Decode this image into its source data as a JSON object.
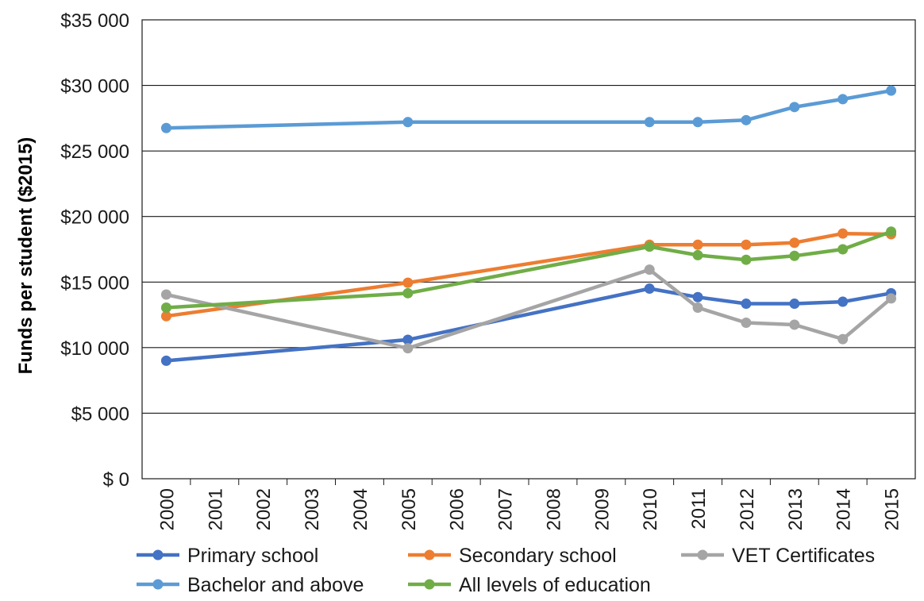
{
  "chart_data": {
    "type": "line",
    "title": "",
    "xlabel": "",
    "ylabel": "Funds per student ($2015)",
    "ylim": [
      0,
      35000
    ],
    "yticks": [
      0,
      5000,
      10000,
      15000,
      20000,
      25000,
      30000,
      35000
    ],
    "ytick_labels": [
      "$ 0",
      "$5 000",
      "$10 000",
      "$15 000",
      "$20 000",
      "$25 000",
      "$30 000",
      "$35 000"
    ],
    "x_categories": [
      "2000",
      "2001",
      "2002",
      "2003",
      "2004",
      "2005",
      "2006",
      "2007",
      "2008",
      "2009",
      "2010",
      "2011",
      "2012",
      "2013",
      "2014",
      "2015"
    ],
    "grid": "horizontal",
    "legend_position": "bottom",
    "series": [
      {
        "name": "Primary school",
        "color": "#4472C4",
        "points": [
          {
            "x": "2000",
            "y": 9000
          },
          {
            "x": "2005",
            "y": 10600
          },
          {
            "x": "2010",
            "y": 14500
          },
          {
            "x": "2011",
            "y": 13850
          },
          {
            "x": "2012",
            "y": 13350
          },
          {
            "x": "2013",
            "y": 13350
          },
          {
            "x": "2014",
            "y": 13500
          },
          {
            "x": "2015",
            "y": 14150
          }
        ]
      },
      {
        "name": "Secondary school",
        "color": "#ED7D31",
        "points": [
          {
            "x": "2000",
            "y": 12400
          },
          {
            "x": "2005",
            "y": 14950
          },
          {
            "x": "2010",
            "y": 17850
          },
          {
            "x": "2011",
            "y": 17850
          },
          {
            "x": "2012",
            "y": 17850
          },
          {
            "x": "2013",
            "y": 18000
          },
          {
            "x": "2014",
            "y": 18700
          },
          {
            "x": "2015",
            "y": 18650
          }
        ]
      },
      {
        "name": "VET Certificates",
        "color": "#A5A5A5",
        "points": [
          {
            "x": "2000",
            "y": 14050
          },
          {
            "x": "2005",
            "y": 9950
          },
          {
            "x": "2010",
            "y": 15950
          },
          {
            "x": "2011",
            "y": 13050
          },
          {
            "x": "2012",
            "y": 11900
          },
          {
            "x": "2013",
            "y": 11750
          },
          {
            "x": "2014",
            "y": 10650
          },
          {
            "x": "2015",
            "y": 13750
          }
        ]
      },
      {
        "name": "Bachelor and above",
        "color": "#5B9BD5",
        "points": [
          {
            "x": "2000",
            "y": 26750
          },
          {
            "x": "2005",
            "y": 27200
          },
          {
            "x": "2010",
            "y": 27200
          },
          {
            "x": "2011",
            "y": 27200
          },
          {
            "x": "2012",
            "y": 27350
          },
          {
            "x": "2013",
            "y": 28350
          },
          {
            "x": "2014",
            "y": 28950
          },
          {
            "x": "2015",
            "y": 29600
          }
        ]
      },
      {
        "name": "All levels of education",
        "color": "#70AD47",
        "points": [
          {
            "x": "2000",
            "y": 13050
          },
          {
            "x": "2005",
            "y": 14150
          },
          {
            "x": "2010",
            "y": 17700
          },
          {
            "x": "2011",
            "y": 17050
          },
          {
            "x": "2012",
            "y": 16700
          },
          {
            "x": "2013",
            "y": 17000
          },
          {
            "x": "2014",
            "y": 17500
          },
          {
            "x": "2015",
            "y": 18850
          }
        ]
      }
    ]
  }
}
